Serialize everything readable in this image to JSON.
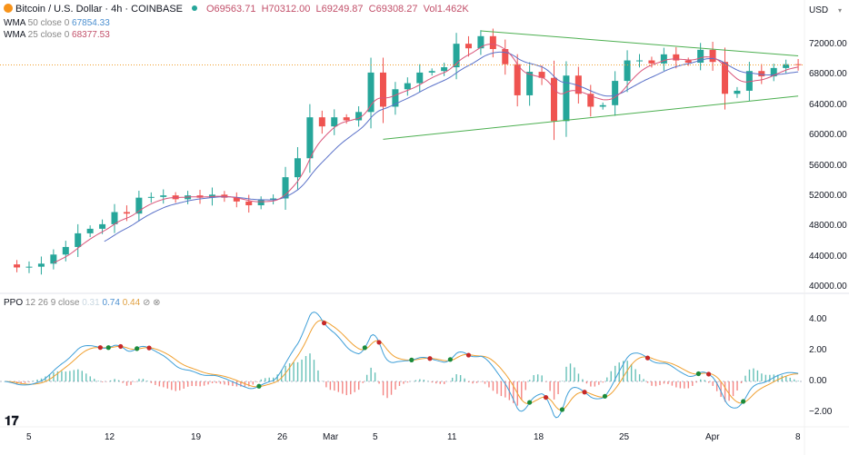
{
  "header": {
    "symbol": "Bitcoin / U.S. Dollar · 4h · COINBASE",
    "open": "O69563.71",
    "high": "H70312.00",
    "low": "L69249.87",
    "close": "C69308.27",
    "volume": "Vol1.462K"
  },
  "indicators": {
    "wma50": {
      "label": "WMA",
      "params": "50 close 0",
      "value": "67854.33",
      "color": "#5b72c9"
    },
    "wma25": {
      "label": "WMA",
      "params": "25 close 0",
      "value": "68377.53",
      "color": "#d9557a"
    },
    "ppo": {
      "label": "PPO",
      "params": "12 26 9 close",
      "hist": "0.31",
      "ppo": "0.74",
      "signal": "0.44",
      "icons": "⊘ ⊗"
    }
  },
  "currency_selector": {
    "value": "USD",
    "icon": "chevron-down-icon"
  },
  "price_axis": {
    "ticks": [
      "72000.00",
      "68000.00",
      "64000.00",
      "60000.00",
      "56000.00",
      "52000.00",
      "48000.00",
      "44000.00",
      "40000.00"
    ]
  },
  "ppo_axis": {
    "ticks": [
      "4.00",
      "2.00",
      "0.00",
      "−2.00"
    ]
  },
  "time_axis": {
    "ticks": [
      "5",
      "12",
      "19",
      "26",
      "Mar",
      "5",
      "11",
      "18",
      "25",
      "Apr",
      "8"
    ]
  },
  "logo": "17",
  "chart_data": {
    "type": "candlestick",
    "timeframe": "4h",
    "start_date": "2024-02-03",
    "daily_closes": [
      43000,
      42600,
      42700,
      43100,
      44300,
      45300,
      47100,
      47700,
      48300,
      49900,
      49700,
      51800,
      51900,
      52100,
      51600,
      52100,
      51800,
      52200,
      51800,
      51300,
      50800,
      51500,
      51700,
      54500,
      57000,
      62400,
      61200,
      62400,
      62000,
      63100,
      68300,
      63800,
      66100,
      66900,
      68300,
      68500,
      69000,
      72100,
      71500,
      73100,
      71400,
      69400,
      65300,
      68400,
      67600,
      61900,
      67900,
      65500,
      63800,
      64000,
      67200,
      69900,
      69900,
      69500,
      70700,
      69900,
      69600,
      71300,
      69700,
      65500,
      65900,
      68500,
      67800,
      68900,
      69400,
      69308
    ],
    "ylim": [
      40000,
      74000
    ],
    "last_price": 69308.27,
    "trendlines": [
      {
        "from": [
          "2024-03-13",
          73800
        ],
        "to": [
          "2024-04-08",
          70500
        ],
        "color": "#4caf50"
      },
      {
        "from": [
          "2024-03-05",
          59500
        ],
        "to": [
          "2024-04-08",
          65200
        ],
        "color": "#4caf50"
      }
    ],
    "colors": {
      "up": "#26a69a",
      "down": "#ef5350",
      "ppo": "#3f9fd8",
      "signal": "#f0a030",
      "hist_up": "#26a69a",
      "hist_down": "#ef5350",
      "cross_up": "#1b8a3a",
      "cross_down": "#c62828"
    },
    "ppo_ylim": [
      -3,
      5
    ]
  }
}
